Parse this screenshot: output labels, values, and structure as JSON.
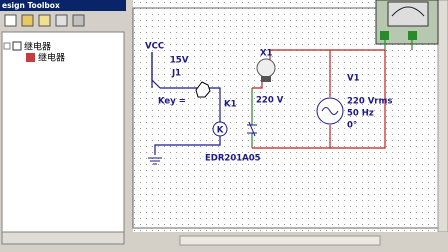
{
  "toolbox": {
    "title": "esign Toolbox",
    "tree": {
      "root": "继电器",
      "child": "继电器"
    }
  },
  "schematic": {
    "vcc": "VCC",
    "vcc_voltage": "15V",
    "switch_name": "J1",
    "switch_key": "Key =",
    "lamp_name": "X1",
    "lamp_rating": "220 V",
    "relay_name": "K1",
    "relay_model": "EDR201A05",
    "source_name": "V1",
    "source_voltage": "220 Vrms",
    "source_freq": "50 Hz",
    "source_phase": "0°"
  }
}
